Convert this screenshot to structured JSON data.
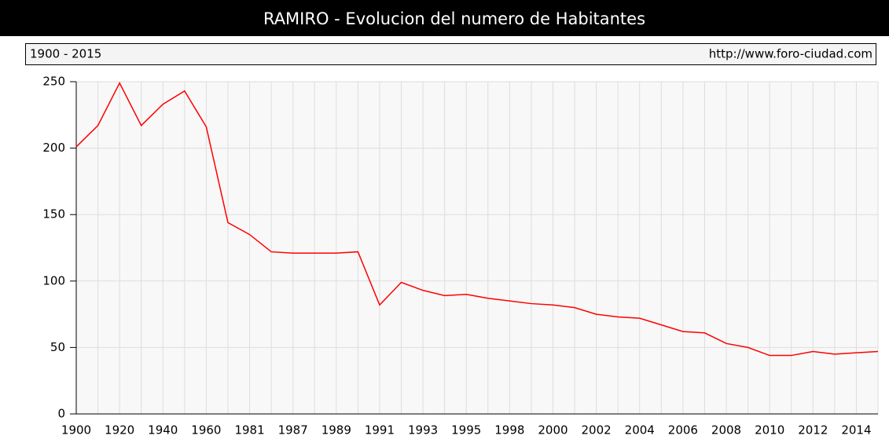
{
  "chart_data": {
    "type": "line",
    "title": "RAMIRO - Evolucion del numero de Habitantes",
    "subtitle": "1900 - 2015",
    "source": "http://www.foro-ciudad.com",
    "categories": [
      "1900",
      null,
      "1920",
      null,
      "1940",
      null,
      "1960",
      null,
      "1981",
      null,
      "1987",
      null,
      "1989",
      null,
      "1991",
      null,
      "1993",
      null,
      "1995",
      null,
      "1998",
      null,
      "2000",
      null,
      "2002",
      null,
      "2004",
      null,
      "2006",
      null,
      "2008",
      null,
      "2010",
      null,
      "2012",
      null,
      "2014",
      null
    ],
    "series": [
      {
        "name": "Habitantes",
        "color": "#ff0000",
        "values": [
          201,
          217,
          249,
          217,
          233,
          243,
          216,
          144,
          135,
          122,
          121,
          121,
          121,
          122,
          82,
          99,
          93,
          89,
          90,
          87,
          85,
          83,
          82,
          80,
          75,
          73,
          72,
          67,
          62,
          61,
          53,
          50,
          44,
          44,
          47,
          45,
          46,
          47
        ]
      }
    ],
    "ylim": [
      0,
      250
    ],
    "yticks": [
      0,
      50,
      100,
      150,
      200,
      250
    ],
    "grid": true
  }
}
